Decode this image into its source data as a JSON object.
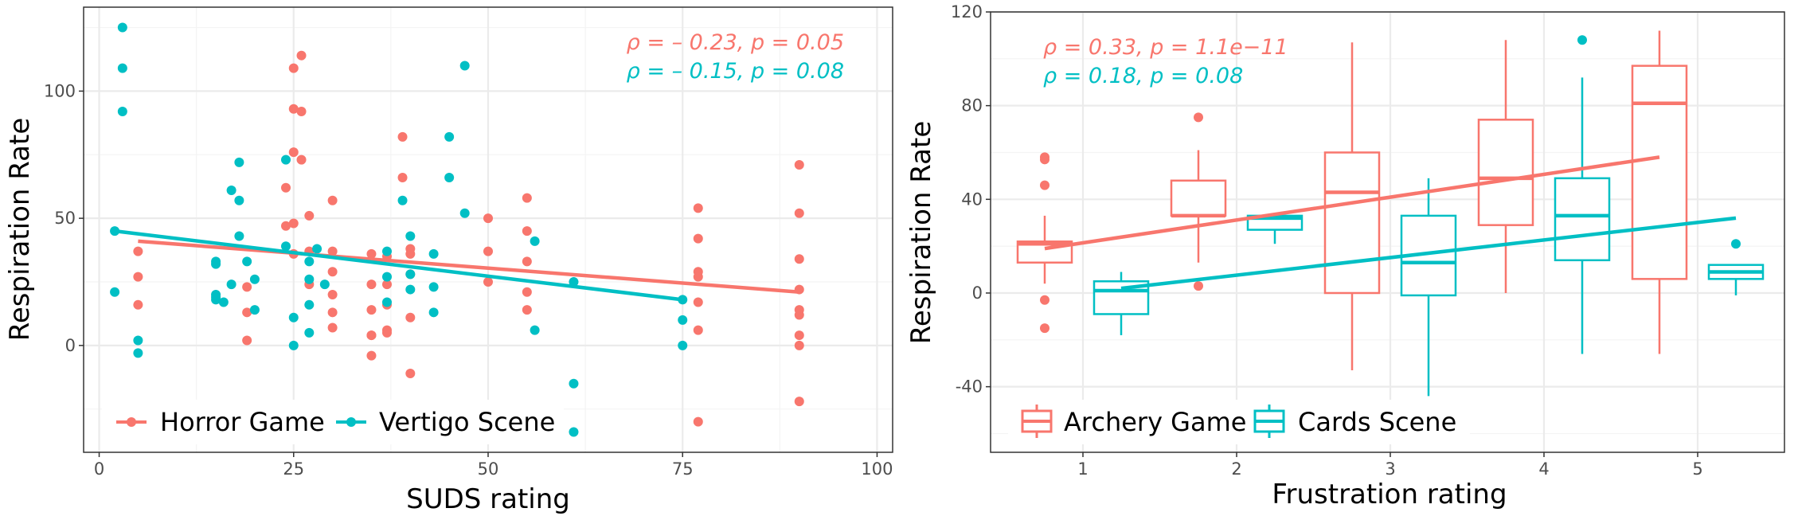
{
  "colors": {
    "red": "#F8766D",
    "teal": "#00BFC4",
    "grid_major": "#ebebeb",
    "grid_minor": "#f4f4f4",
    "border": "#333333"
  },
  "chart_data": [
    {
      "type": "scatter",
      "xlabel": "SUDS rating",
      "ylabel": "Respiration Rate",
      "xlim": [
        -2,
        102
      ],
      "ylim": [
        -42,
        133
      ],
      "x_ticks": [
        0,
        25,
        50,
        75,
        100
      ],
      "x_tick_labels": [
        "0",
        "25",
        "50",
        "75",
        "100"
      ],
      "y_ticks": [
        0,
        50,
        100
      ],
      "y_tick_labels": [
        "0",
        "50",
        "100"
      ],
      "grid": true,
      "legend": {
        "position": "bottom-left",
        "entries": [
          "Horror Game",
          "Vertigo Scene"
        ]
      },
      "annotations": [
        {
          "text": "ρ = – 0.23, p = 0.05",
          "series": "Horror Game"
        },
        {
          "text": "ρ = – 0.15, p = 0.08",
          "series": "Vertigo Scene"
        }
      ],
      "series": [
        {
          "name": "Horror Game",
          "color": "#F8766D",
          "points": [
            [
              5,
              37
            ],
            [
              5,
              27
            ],
            [
              5,
              16
            ],
            [
              19,
              23
            ],
            [
              19,
              13
            ],
            [
              19,
              2
            ],
            [
              24,
              62
            ],
            [
              24,
              47
            ],
            [
              25,
              109
            ],
            [
              25,
              93
            ],
            [
              25,
              76
            ],
            [
              26,
              114
            ],
            [
              26,
              92
            ],
            [
              26,
              73
            ],
            [
              25,
              48
            ],
            [
              25,
              36
            ],
            [
              27,
              51
            ],
            [
              27,
              37
            ],
            [
              27,
              24
            ],
            [
              30,
              57
            ],
            [
              30,
              37
            ],
            [
              30,
              29
            ],
            [
              30,
              20
            ],
            [
              30,
              13
            ],
            [
              30,
              7
            ],
            [
              35,
              36
            ],
            [
              35,
              24
            ],
            [
              35,
              14
            ],
            [
              35,
              4
            ],
            [
              35,
              4
            ],
            [
              35,
              -4
            ],
            [
              37,
              35
            ],
            [
              37,
              24
            ],
            [
              37,
              16
            ],
            [
              37,
              6
            ],
            [
              37,
              5
            ],
            [
              39,
              82
            ],
            [
              39,
              66
            ],
            [
              40,
              38
            ],
            [
              40,
              36
            ],
            [
              40,
              28
            ],
            [
              40,
              11
            ],
            [
              40,
              -11
            ],
            [
              50,
              50
            ],
            [
              50,
              37
            ],
            [
              50,
              25
            ],
            [
              55,
              58
            ],
            [
              55,
              45
            ],
            [
              55,
              33
            ],
            [
              55,
              21
            ],
            [
              55,
              14
            ],
            [
              77,
              54
            ],
            [
              77,
              42
            ],
            [
              77,
              29
            ],
            [
              77,
              27
            ],
            [
              77,
              17
            ],
            [
              77,
              6
            ],
            [
              77,
              -30
            ],
            [
              90,
              71
            ],
            [
              90,
              52
            ],
            [
              90,
              34
            ],
            [
              90,
              22
            ],
            [
              90,
              14
            ],
            [
              90,
              12
            ],
            [
              90,
              4
            ],
            [
              90,
              0
            ],
            [
              90,
              -22
            ]
          ],
          "trend": {
            "x": [
              5,
              90
            ],
            "y": [
              41,
              21
            ]
          }
        },
        {
          "name": "Vertigo Scene",
          "color": "#00BFC4",
          "points": [
            [
              2,
              45
            ],
            [
              2,
              21
            ],
            [
              3,
              125
            ],
            [
              3,
              109
            ],
            [
              3,
              92
            ],
            [
              5,
              2
            ],
            [
              5,
              -3
            ],
            [
              15,
              33
            ],
            [
              15,
              32
            ],
            [
              15,
              20
            ],
            [
              15,
              19
            ],
            [
              15,
              18
            ],
            [
              16,
              17
            ],
            [
              17,
              61
            ],
            [
              17,
              24
            ],
            [
              18,
              57
            ],
            [
              18,
              72
            ],
            [
              18,
              43
            ],
            [
              19,
              33
            ],
            [
              20,
              26
            ],
            [
              20,
              14
            ],
            [
              24,
              73
            ],
            [
              24,
              39
            ],
            [
              25,
              11
            ],
            [
              25,
              0
            ],
            [
              27,
              33
            ],
            [
              27,
              26
            ],
            [
              27,
              16
            ],
            [
              27,
              5
            ],
            [
              28,
              38
            ],
            [
              29,
              24
            ],
            [
              37,
              37
            ],
            [
              37,
              27
            ],
            [
              37,
              17
            ],
            [
              39,
              57
            ],
            [
              40,
              43
            ],
            [
              40,
              28
            ],
            [
              40,
              22
            ],
            [
              43,
              36
            ],
            [
              43,
              23
            ],
            [
              43,
              13
            ],
            [
              45,
              82
            ],
            [
              45,
              66
            ],
            [
              47,
              110
            ],
            [
              47,
              52
            ],
            [
              56,
              41
            ],
            [
              56,
              6
            ],
            [
              61,
              -15
            ],
            [
              61,
              -34
            ],
            [
              61,
              25
            ],
            [
              75,
              18
            ],
            [
              75,
              10
            ],
            [
              75,
              0
            ]
          ],
          "trend": {
            "x": [
              2,
              75
            ],
            "y": [
              45,
              18
            ]
          }
        }
      ]
    },
    {
      "type": "box",
      "xlabel": "Frustration rating",
      "ylabel": "Respiration Rate",
      "ylim": [
        -68,
        120
      ],
      "categories": [
        "1",
        "2",
        "3",
        "4",
        "5"
      ],
      "y_ticks": [
        -40,
        0,
        40,
        80,
        120
      ],
      "y_tick_labels": [
        "-40",
        "0",
        "40",
        "80",
        "120"
      ],
      "grid": true,
      "legend": {
        "position": "bottom-left",
        "entries": [
          "Archery Game",
          "Cards Scene"
        ]
      },
      "annotations": [
        {
          "text": "ρ = 0.33, p = 1.1e−11",
          "series": "Archery Game"
        },
        {
          "text": "ρ = 0.18, p = 0.08",
          "series": "Cards Scene"
        }
      ],
      "series": [
        {
          "name": "Archery Game",
          "color": "#F8766D",
          "boxes": [
            {
              "category": "1",
              "min": 4,
              "q1": 13,
              "median": 21,
              "q3": 22,
              "max": 33,
              "outliers": [
                58,
                57,
                46,
                -3,
                -15
              ]
            },
            {
              "category": "2",
              "min": 13,
              "q1": 33,
              "median": 33,
              "q3": 48,
              "max": 61,
              "outliers": [
                75,
                3
              ]
            },
            {
              "category": "3",
              "min": -33,
              "q1": 0,
              "median": 43,
              "q3": 60,
              "max": 107,
              "outliers": []
            },
            {
              "category": "4",
              "min": 0,
              "q1": 29,
              "median": 49,
              "q3": 74,
              "max": 108,
              "outliers": []
            },
            {
              "category": "5",
              "min": -26,
              "q1": 6,
              "median": 81,
              "q3": 97,
              "max": 112,
              "outliers": []
            }
          ],
          "trend": {
            "x": [
              1,
              5
            ],
            "y": [
              19,
              58
            ]
          }
        },
        {
          "name": "Cards Scene",
          "color": "#00BFC4",
          "boxes": [
            {
              "category": "1",
              "min": -18,
              "q1": -9,
              "median": 1,
              "q3": 5,
              "max": 9,
              "outliers": []
            },
            {
              "category": "2",
              "min": 21,
              "q1": 27,
              "median": 32,
              "q3": 33,
              "max": 33,
              "outliers": []
            },
            {
              "category": "3",
              "min": -44,
              "q1": -1,
              "median": 13,
              "q3": 33,
              "max": 49,
              "outliers": []
            },
            {
              "category": "4",
              "min": -26,
              "q1": 14,
              "median": 33,
              "q3": 49,
              "max": 92,
              "outliers": [
                108
              ]
            },
            {
              "category": "5",
              "min": -1,
              "q1": 6,
              "median": 9,
              "q3": 12,
              "max": 12,
              "outliers": [
                21
              ]
            }
          ],
          "trend": {
            "x": [
              1,
              5
            ],
            "y": [
              2,
              32
            ]
          }
        }
      ]
    }
  ]
}
